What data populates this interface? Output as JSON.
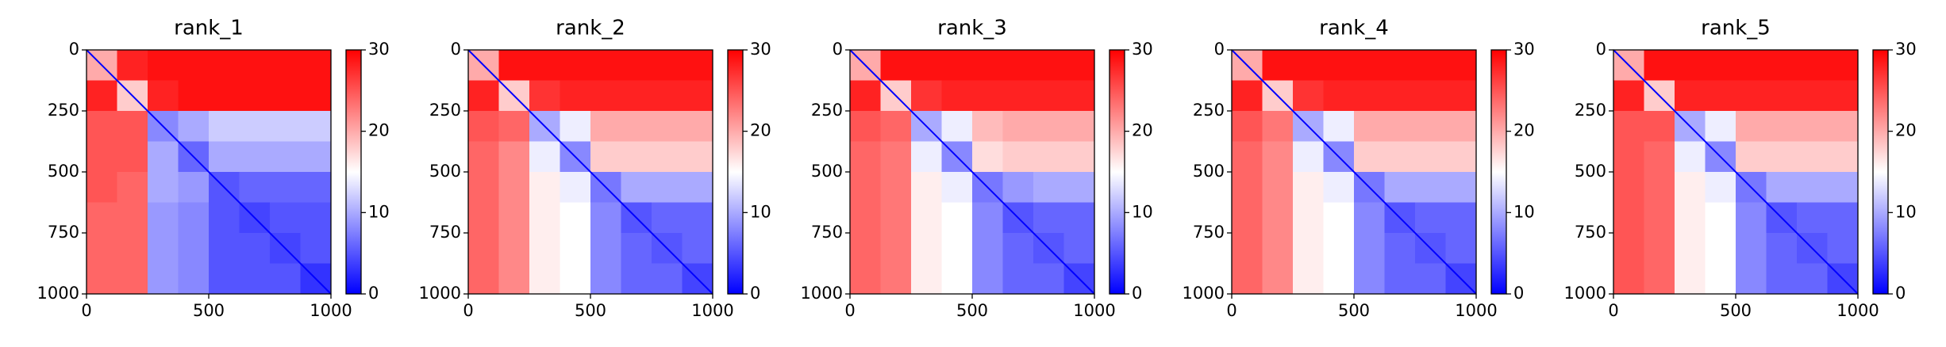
{
  "chart_data": [
    {
      "type": "heatmap",
      "title": "rank_1",
      "xlim": [
        0,
        1000
      ],
      "ylim": [
        1000,
        0
      ],
      "xticks": [
        0,
        500,
        1000
      ],
      "yticks": [
        0,
        250,
        500,
        750,
        1000
      ],
      "clim": [
        0,
        30
      ],
      "cticks": [
        0,
        10,
        20,
        30
      ],
      "colormap": [
        "#0000ff",
        "#ffffff",
        "#ff0000"
      ],
      "z": [
        [
          20,
          28,
          29,
          29,
          29,
          29,
          29,
          29
        ],
        [
          28,
          18,
          28,
          29,
          29,
          29,
          29,
          29
        ],
        [
          25,
          25,
          8,
          10,
          12,
          12,
          12,
          12
        ],
        [
          25,
          25,
          10,
          6,
          10,
          10,
          10,
          10
        ],
        [
          25,
          24,
          10,
          9,
          5,
          6,
          6,
          6
        ],
        [
          24,
          24,
          9,
          8,
          5,
          4,
          5,
          5
        ],
        [
          24,
          24,
          9,
          8,
          5,
          5,
          4,
          5
        ],
        [
          24,
          24,
          9,
          8,
          5,
          5,
          5,
          3
        ]
      ]
    },
    {
      "type": "heatmap",
      "title": "rank_2",
      "xlim": [
        0,
        1000
      ],
      "ylim": [
        1000,
        0
      ],
      "xticks": [
        0,
        500,
        1000
      ],
      "yticks": [
        0,
        250,
        500,
        750,
        1000
      ],
      "clim": [
        0,
        30
      ],
      "cticks": [
        0,
        10,
        20,
        30
      ],
      "colormap": [
        "#0000ff",
        "#ffffff",
        "#ff0000"
      ],
      "z": [
        [
          20,
          29,
          29,
          29,
          29,
          29,
          29,
          29
        ],
        [
          28,
          18,
          27,
          28,
          28,
          28,
          28,
          28
        ],
        [
          25,
          24,
          10,
          14,
          20,
          20,
          20,
          20
        ],
        [
          24,
          22,
          14,
          8,
          18,
          18,
          18,
          18
        ],
        [
          24,
          22,
          16,
          14,
          7,
          10,
          10,
          10
        ],
        [
          24,
          22,
          16,
          15,
          8,
          5,
          6,
          6
        ],
        [
          24,
          22,
          16,
          15,
          8,
          6,
          5,
          6
        ],
        [
          24,
          22,
          16,
          15,
          8,
          6,
          6,
          4
        ]
      ]
    },
    {
      "type": "heatmap",
      "title": "rank_3",
      "xlim": [
        0,
        1000
      ],
      "ylim": [
        1000,
        0
      ],
      "xticks": [
        0,
        500,
        1000
      ],
      "yticks": [
        0,
        250,
        500,
        750,
        1000
      ],
      "clim": [
        0,
        30
      ],
      "cticks": [
        0,
        10,
        20,
        30
      ],
      "colormap": [
        "#0000ff",
        "#ffffff",
        "#ff0000"
      ],
      "z": [
        [
          20,
          29,
          29,
          29,
          29,
          29,
          29,
          29
        ],
        [
          28,
          18,
          27,
          28,
          28,
          28,
          28,
          28
        ],
        [
          25,
          24,
          10,
          14,
          19,
          20,
          20,
          20
        ],
        [
          24,
          23,
          14,
          8,
          17,
          18,
          18,
          18
        ],
        [
          24,
          23,
          16,
          14,
          7,
          9,
          10,
          10
        ],
        [
          24,
          23,
          16,
          15,
          8,
          5,
          6,
          6
        ],
        [
          24,
          23,
          16,
          15,
          8,
          6,
          5,
          6
        ],
        [
          24,
          23,
          16,
          15,
          8,
          6,
          6,
          4
        ]
      ]
    },
    {
      "type": "heatmap",
      "title": "rank_4",
      "xlim": [
        0,
        1000
      ],
      "ylim": [
        1000,
        0
      ],
      "xticks": [
        0,
        500,
        1000
      ],
      "yticks": [
        0,
        250,
        500,
        750,
        1000
      ],
      "clim": [
        0,
        30
      ],
      "cticks": [
        0,
        10,
        20,
        30
      ],
      "colormap": [
        "#0000ff",
        "#ffffff",
        "#ff0000"
      ],
      "z": [
        [
          20,
          29,
          29,
          29,
          29,
          29,
          29,
          29
        ],
        [
          28,
          18,
          27,
          28,
          28,
          28,
          28,
          28
        ],
        [
          25,
          23,
          10,
          14,
          20,
          20,
          20,
          20
        ],
        [
          24,
          22,
          14,
          8,
          18,
          18,
          18,
          18
        ],
        [
          24,
          22,
          16,
          14,
          7,
          10,
          10,
          10
        ],
        [
          24,
          22,
          16,
          15,
          8,
          5,
          6,
          6
        ],
        [
          24,
          22,
          16,
          15,
          8,
          6,
          5,
          6
        ],
        [
          24,
          22,
          16,
          15,
          8,
          6,
          6,
          4
        ]
      ]
    },
    {
      "type": "heatmap",
      "title": "rank_5",
      "xlim": [
        0,
        1000
      ],
      "ylim": [
        1000,
        0
      ],
      "xticks": [
        0,
        500,
        1000
      ],
      "yticks": [
        0,
        250,
        500,
        750,
        1000
      ],
      "clim": [
        0,
        30
      ],
      "cticks": [
        0,
        10,
        20,
        30
      ],
      "colormap": [
        "#0000ff",
        "#ffffff",
        "#ff0000"
      ],
      "z": [
        [
          20,
          29,
          29,
          29,
          29,
          29,
          29,
          29
        ],
        [
          28,
          18,
          28,
          28,
          28,
          28,
          28,
          28
        ],
        [
          25,
          25,
          10,
          14,
          20,
          20,
          20,
          20
        ],
        [
          25,
          24,
          14,
          8,
          18,
          18,
          18,
          18
        ],
        [
          25,
          24,
          16,
          14,
          7,
          10,
          10,
          10
        ],
        [
          25,
          24,
          16,
          15,
          8,
          5,
          6,
          6
        ],
        [
          25,
          24,
          16,
          15,
          8,
          6,
          5,
          6
        ],
        [
          25,
          24,
          16,
          15,
          8,
          6,
          6,
          4
        ]
      ]
    }
  ]
}
